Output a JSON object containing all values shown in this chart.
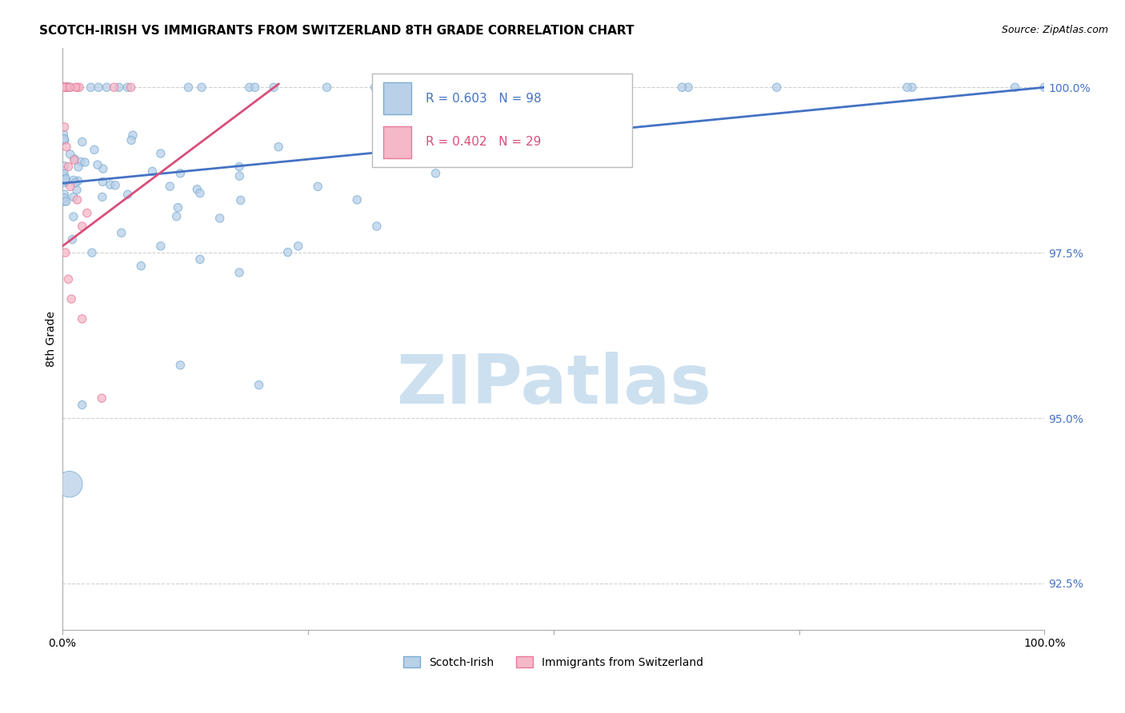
{
  "title": "SCOTCH-IRISH VS IMMIGRANTS FROM SWITZERLAND 8TH GRADE CORRELATION CHART",
  "source": "Source: ZipAtlas.com",
  "ylabel": "8th Grade",
  "y_ticks": [
    92.5,
    95.0,
    97.5,
    100.0
  ],
  "y_tick_labels": [
    "92.5%",
    "95.0%",
    "97.5%",
    "100.0%"
  ],
  "legend1_text": "R = 0.603   N = 98",
  "legend2_text": "R = 0.402   N = 29",
  "blue_scatter_color": "#b8d0e8",
  "blue_scatter_edge": "#7aadd4",
  "pink_scatter_color": "#f5b8c8",
  "pink_scatter_edge": "#e87a9a",
  "blue_line_color": "#4472c4",
  "pink_line_color": "#d94f7a",
  "legend_text_blue": "#4472c4",
  "legend_text_pink": "#d94f7a",
  "background_color": "#ffffff",
  "grid_color": "#d0d0d0",
  "ytick_color": "#4472c4",
  "watermark_color": "#cce0f0",
  "xlim": [
    0.0,
    1.0
  ],
  "ylim": [
    91.8,
    100.6
  ],
  "blue_line_x0": 0.0,
  "blue_line_y0": 98.55,
  "blue_line_x1": 1.0,
  "blue_line_y1": 100.0,
  "pink_line_x0": 0.0,
  "pink_line_y0": 97.6,
  "pink_line_x1": 0.22,
  "pink_line_y1": 100.05
}
